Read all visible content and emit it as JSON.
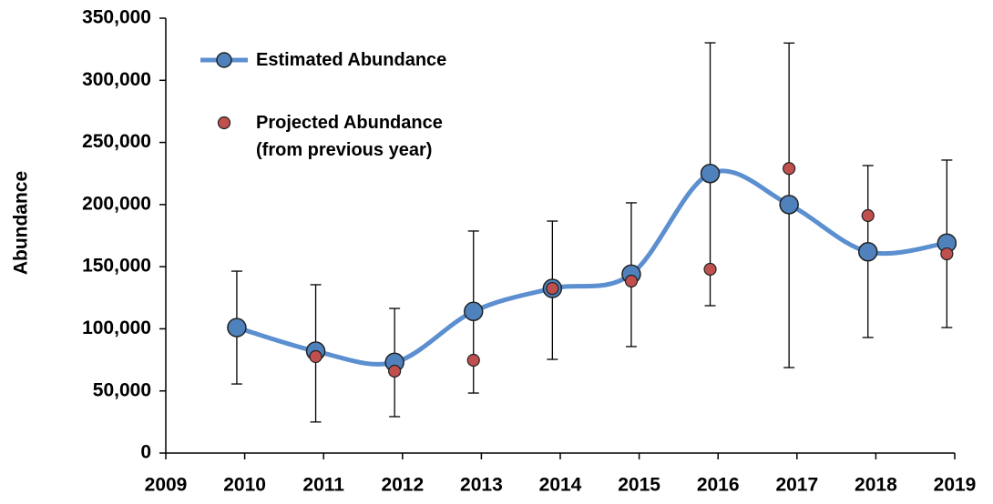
{
  "chart_data": {
    "type": "line",
    "y_label": "Abundance",
    "xlim": [
      2009,
      2019
    ],
    "xticks": [
      2009,
      2010,
      2011,
      2012,
      2013,
      2014,
      2015,
      2016,
      2017,
      2018,
      2019
    ],
    "ylim": [
      0,
      350000
    ],
    "yticks": [
      0,
      {
        "value": 50000,
        "label": "50,000"
      },
      {
        "value": 100000,
        "label": "100,000"
      },
      {
        "value": 150000,
        "label": "150,000"
      },
      {
        "value": 200000,
        "label": "200,000"
      },
      {
        "value": 250000,
        "label": "250,000"
      },
      {
        "value": 300000,
        "label": "300,000"
      },
      {
        "value": 350000,
        "label": "350,000"
      }
    ],
    "x": [
      2009.9,
      2010.9,
      2011.9,
      2012.9,
      2013.9,
      2014.9,
      2015.9,
      2016.9,
      2017.9,
      2018.9
    ],
    "series": [
      {
        "name": "Estimated Abundance",
        "color": "#4f81bd",
        "line_color": "#5b8fd0",
        "values": [
          101000,
          82000,
          73000,
          114000,
          132500,
          144000,
          225000,
          200000,
          162000,
          169000
        ],
        "lower": [
          55600,
          25000,
          29300,
          48300,
          75400,
          85700,
          118600,
          68800,
          93000,
          101000
        ],
        "upper": [
          146400,
          135500,
          116400,
          178700,
          186700,
          201400,
          330200,
          330000,
          231400,
          235800
        ]
      },
      {
        "name": "Projected Abundance\n(from previous year)",
        "color": "#c0504d",
        "values": [
          null,
          77600,
          65900,
          74700,
          132500,
          138400,
          147900,
          229000,
          191100,
          160300
        ]
      }
    ]
  }
}
